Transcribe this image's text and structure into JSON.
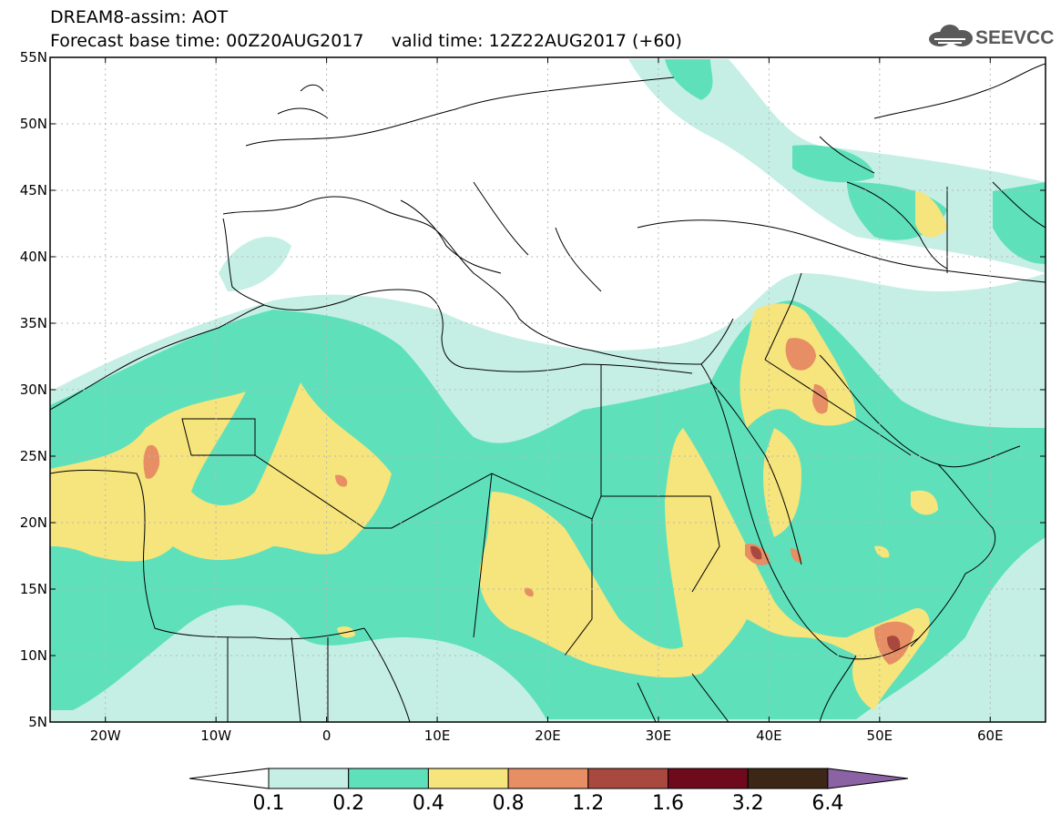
{
  "header": {
    "title_line1": "DREAM8-assim: AOT",
    "base_time_label": "Forecast base time: 00Z20AUG2017",
    "valid_time_label": "valid time: 12Z22AUG2017 (+60)"
  },
  "logo": {
    "text": "SEEVCCC",
    "icon": "cloud-icon"
  },
  "axes": {
    "lon_min": -25,
    "lon_max": 65,
    "lat_min": 5,
    "lat_max": 55,
    "x_ticks": [
      {
        "lon": -20,
        "label": "20W"
      },
      {
        "lon": -10,
        "label": "10W"
      },
      {
        "lon": 0,
        "label": "0"
      },
      {
        "lon": 10,
        "label": "10E"
      },
      {
        "lon": 20,
        "label": "20E"
      },
      {
        "lon": 30,
        "label": "30E"
      },
      {
        "lon": 40,
        "label": "40E"
      },
      {
        "lon": 50,
        "label": "50E"
      },
      {
        "lon": 60,
        "label": "60E"
      }
    ],
    "y_ticks": [
      {
        "lat": 55,
        "label": "55N"
      },
      {
        "lat": 50,
        "label": "50N"
      },
      {
        "lat": 45,
        "label": "45N"
      },
      {
        "lat": 40,
        "label": "40N"
      },
      {
        "lat": 35,
        "label": "35N"
      },
      {
        "lat": 30,
        "label": "30N"
      },
      {
        "lat": 25,
        "label": "25N"
      },
      {
        "lat": 20,
        "label": "20N"
      },
      {
        "lat": 15,
        "label": "15N"
      },
      {
        "lat": 10,
        "label": "10N"
      },
      {
        "lat": 5,
        "label": "5N"
      }
    ]
  },
  "legend": {
    "levels": [
      "0.1",
      "0.2",
      "0.4",
      "0.8",
      "1.2",
      "1.6",
      "3.2",
      "6.4"
    ],
    "colors": [
      "#ffffff",
      "#c5efe5",
      "#5ee1bb",
      "#f6e47c",
      "#e78e64",
      "#a9483e",
      "#6e0a1c",
      "#3c2616",
      "#8b62a3"
    ]
  },
  "colors": {
    "land_edge": "#000000",
    "grid": "#b8b8b8",
    "frame": "#000000"
  }
}
